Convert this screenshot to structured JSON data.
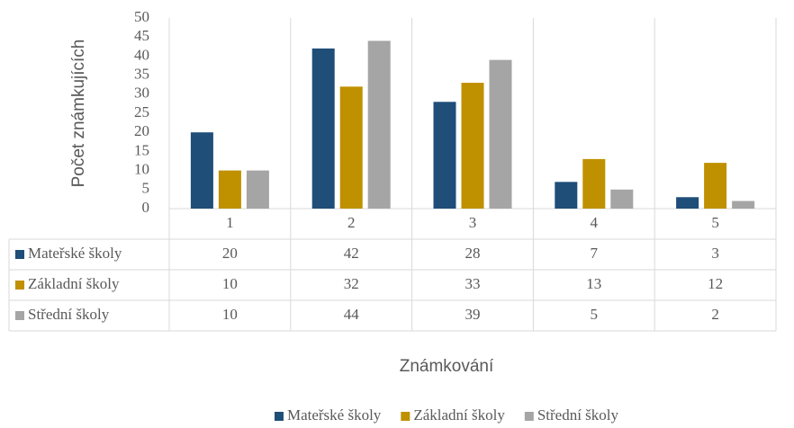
{
  "chart_data": {
    "type": "bar",
    "y_label": "Počet známkujících",
    "x_label": "Známkování",
    "categories": [
      "1",
      "2",
      "3",
      "4",
      "5"
    ],
    "series": [
      {
        "name": "Mateřské školy",
        "color": "#1f4e79",
        "values": [
          20,
          42,
          28,
          7,
          3
        ]
      },
      {
        "name": "Základní školy",
        "color": "#bf9000",
        "values": [
          10,
          32,
          33,
          13,
          12
        ]
      },
      {
        "name": "Střední školy",
        "color": "#a5a5a5",
        "values": [
          10,
          44,
          39,
          5,
          2
        ]
      }
    ],
    "ylim": [
      0,
      50
    ],
    "yticks": [
      0,
      5,
      10,
      15,
      20,
      25,
      30,
      35,
      40,
      45,
      50
    ],
    "data_table": true,
    "legend": "bottom"
  }
}
